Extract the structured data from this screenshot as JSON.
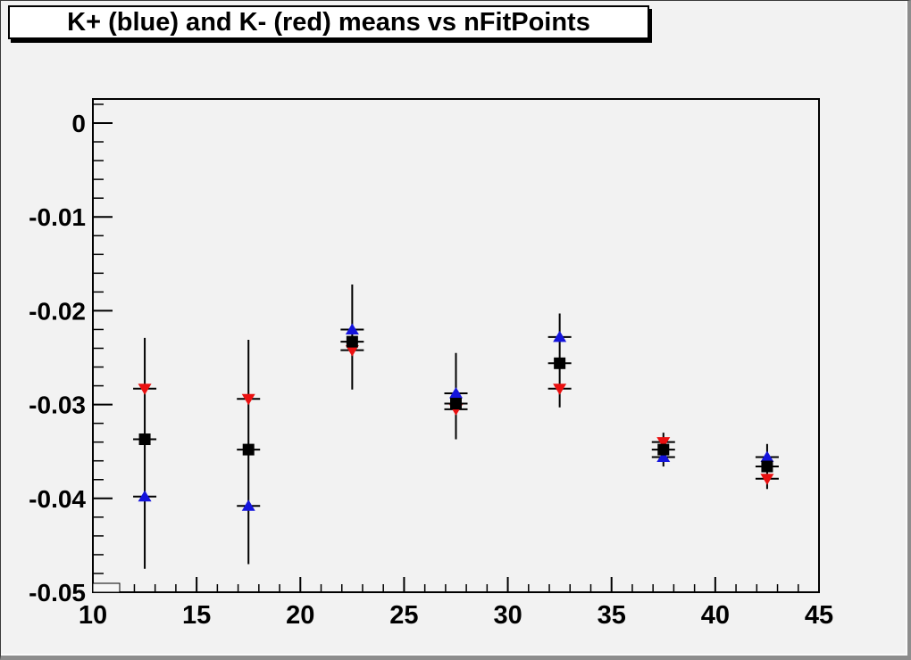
{
  "title": {
    "text": "K+ (blue) and K- (red) means vs nFitPoints"
  },
  "canvas": {
    "background": "#f2f2f2",
    "title_box_bg": "#ffffff",
    "title_box_border": "#000000",
    "frame_border": "#000000"
  },
  "chart_data": {
    "type": "scatter",
    "title": "K+ (blue) and K- (red) means vs nFitPoints",
    "xlabel": "",
    "ylabel": "",
    "grid": false,
    "legend_position": "none",
    "xlim": [
      10,
      45
    ],
    "ylim": [
      -0.05,
      0.0026
    ],
    "x_major_ticks": [
      10,
      15,
      20,
      25,
      30,
      35,
      40,
      45
    ],
    "x_tick_labels": [
      "10",
      "15",
      "20",
      "25",
      "30",
      "35",
      "40",
      "45"
    ],
    "x_minor_step": 1,
    "y_major_ticks": [
      0,
      -0.01,
      -0.02,
      -0.03,
      -0.04,
      -0.05
    ],
    "y_tick_labels": [
      "0",
      "-0.01",
      "-0.02",
      "-0.03",
      "-0.04",
      "-0.05"
    ],
    "y_minor_step": 0.002,
    "x": [
      12.5,
      17.5,
      22.5,
      27.5,
      32.5,
      37.5,
      42.5
    ],
    "series": [
      {
        "name": "K+ (blue)",
        "marker": "triangle-up",
        "color": "#1414dc",
        "values": [
          -0.0398,
          -0.0408,
          -0.022,
          -0.0288,
          -0.0228,
          -0.0356,
          -0.0356
        ]
      },
      {
        "name": "K- (red)",
        "marker": "triangle-down",
        "color": "#ea1010",
        "values": [
          -0.0283,
          -0.0294,
          -0.0242,
          -0.0305,
          -0.0283,
          -0.034,
          -0.0379
        ]
      },
      {
        "name": "mean (black)",
        "marker": "square",
        "color": "#000000",
        "values": [
          -0.0337,
          -0.0348,
          -0.0233,
          -0.0299,
          -0.0256,
          -0.0348,
          -0.0366
        ]
      }
    ],
    "error_spans": [
      [
        -0.0475,
        -0.0229
      ],
      [
        -0.047,
        -0.0231
      ],
      [
        -0.0284,
        -0.0172
      ],
      [
        -0.0337,
        -0.0245
      ],
      [
        -0.0303,
        -0.0203
      ],
      [
        -0.0366,
        -0.033
      ],
      [
        -0.039,
        -0.0342
      ]
    ],
    "x_cap_halfwidth_units": 0.55
  }
}
